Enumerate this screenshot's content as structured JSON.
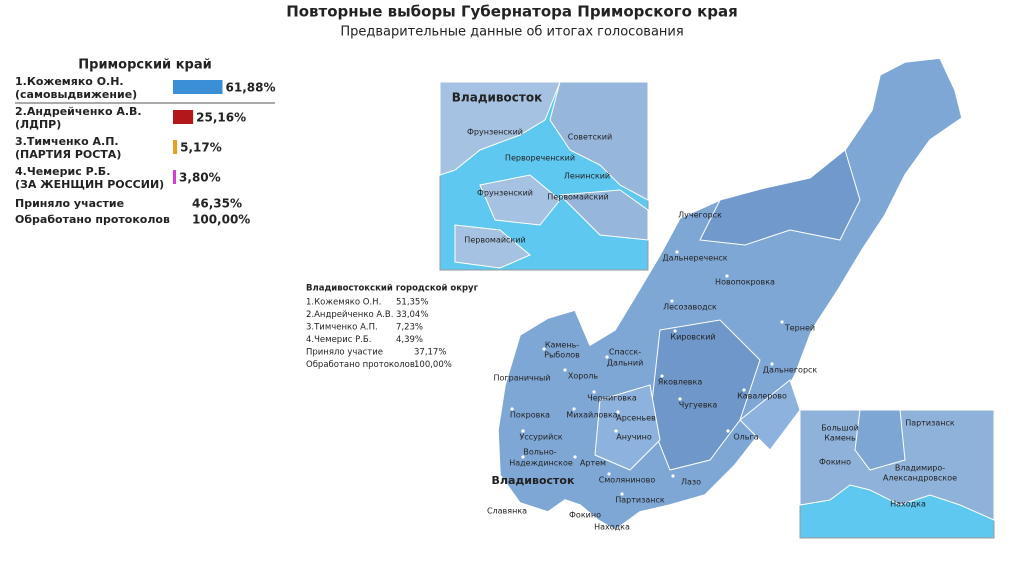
{
  "header": {
    "title": "Повторные выборы Губернатора Приморского края",
    "subtitle": "Предварительные данные об итогах голосования"
  },
  "region": {
    "title": "Приморский край",
    "candidates": [
      {
        "name": "1.Кожемяко О.Н.",
        "party": "(самовыдвижение)",
        "value": 61.88,
        "label": "61,88%",
        "color": "#3b8fd6"
      },
      {
        "name": "2.Андрейченко А.В.",
        "party": "(ЛДПР)",
        "value": 25.16,
        "label": "25,16%",
        "color": "#b3161b"
      },
      {
        "name": "3.Тимченко А.П.",
        "party": "(ПАРТИЯ РОСТА)",
        "value": 5.17,
        "label": "5,17%",
        "color": "#e3a226"
      },
      {
        "name": "4.Чемерис Р.Б.",
        "party": "(ЗА ЖЕНЩИН РОССИИ)",
        "value": 3.8,
        "label": "3,80%",
        "color": "#d63fd6"
      }
    ],
    "stats": [
      [
        "Приняло участие",
        "46,35%"
      ],
      [
        "Обработано протоколов",
        "100,00%"
      ]
    ]
  },
  "city": {
    "title": "Владивостокский городской округ",
    "rows": [
      [
        "1.Кожемяко О.Н.",
        "51,35%"
      ],
      [
        "2.Андрейченко А.В.",
        "33,04%"
      ],
      [
        "3.Тимченко А.П.",
        "7,23%"
      ],
      [
        "4.Чемерис Р.Б.",
        "4,39%"
      ],
      [
        "Приняло участие",
        "37,17%"
      ],
      [
        "Обработано протоколов",
        "100,00%"
      ]
    ]
  },
  "map": {
    "capital": "Владивосток",
    "places": [
      "Лучегорск",
      "Дальнереченск",
      "Новопокровка",
      "Лесозаводск",
      "Терней",
      "Кировский",
      "Камень-",
      "Рыболов",
      "Спасск-",
      "Дальний",
      "Пограничный",
      "Хороль",
      "Яковлевка",
      "Дальнегорск",
      "Черниговка",
      "Кавалерово",
      "Покровка",
      "Михайловка",
      "Арсеньев",
      "Чугуевка",
      "Уссурийск",
      "Анучино",
      "Ольга",
      "Вольно-",
      "Надеждинское",
      "Артем",
      "Смоляниново",
      "Лазо",
      "Партизанск",
      "Славянка",
      "Фокино",
      "Находка"
    ]
  },
  "inset_city": {
    "title": "Владивосток",
    "places": [
      "Фрунзенский",
      "Советский",
      "Первореченский",
      "Ленинский",
      "Фрунзенский",
      "Первомайский",
      "Первомайский"
    ]
  },
  "inset_south": {
    "places": [
      "Большой",
      "Камень",
      "Партизанск",
      "Фокино",
      "Владимиро-",
      "Александровское",
      "Находка"
    ]
  }
}
